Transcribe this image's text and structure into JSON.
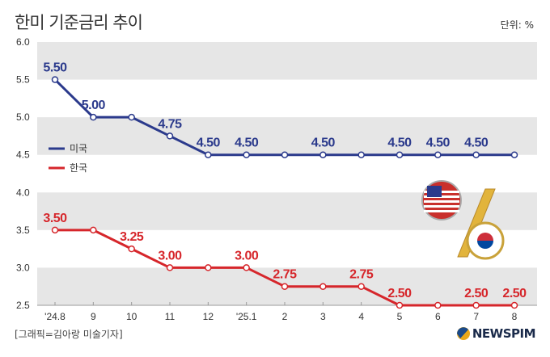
{
  "title": "한미 기준금리 추이",
  "unit": "단위: %",
  "credit": "[그래픽=김아랑 미술기자]",
  "logo": "NEWSPIM",
  "chart_data": {
    "type": "line",
    "categories": [
      "'24.8",
      "9",
      "10",
      "11",
      "12",
      "'25.1",
      "2",
      "3",
      "4",
      "5",
      "6",
      "7",
      "8"
    ],
    "ylim": [
      2.5,
      6.0
    ],
    "yticks": [
      "2.5",
      "3.0",
      "3.5",
      "4.0",
      "4.5",
      "5.0",
      "5.5",
      "6.0"
    ],
    "grid": "alternating bands",
    "legend_placement": "left-middle",
    "series": [
      {
        "name": "미국",
        "color": "#2b3a8c",
        "values": [
          5.5,
          5.0,
          5.0,
          4.75,
          4.5,
          4.5,
          4.5,
          4.5,
          4.5,
          4.5,
          4.5,
          4.5,
          4.5
        ],
        "labels": [
          "5.50",
          "5.00",
          "",
          "4.75",
          "4.50",
          "4.50",
          "",
          "4.50",
          "",
          "4.50",
          "4.50",
          "4.50",
          ""
        ]
      },
      {
        "name": "한국",
        "color": "#d6262b",
        "values": [
          3.5,
          3.5,
          3.25,
          3.0,
          3.0,
          3.0,
          2.75,
          2.75,
          2.75,
          2.5,
          2.5,
          2.5,
          2.5
        ],
        "labels": [
          "3.50",
          "",
          "3.25",
          "3.00",
          "",
          "3.00",
          "2.75",
          "",
          "2.75",
          "2.50",
          "",
          "2.50",
          "2.50"
        ]
      }
    ]
  }
}
